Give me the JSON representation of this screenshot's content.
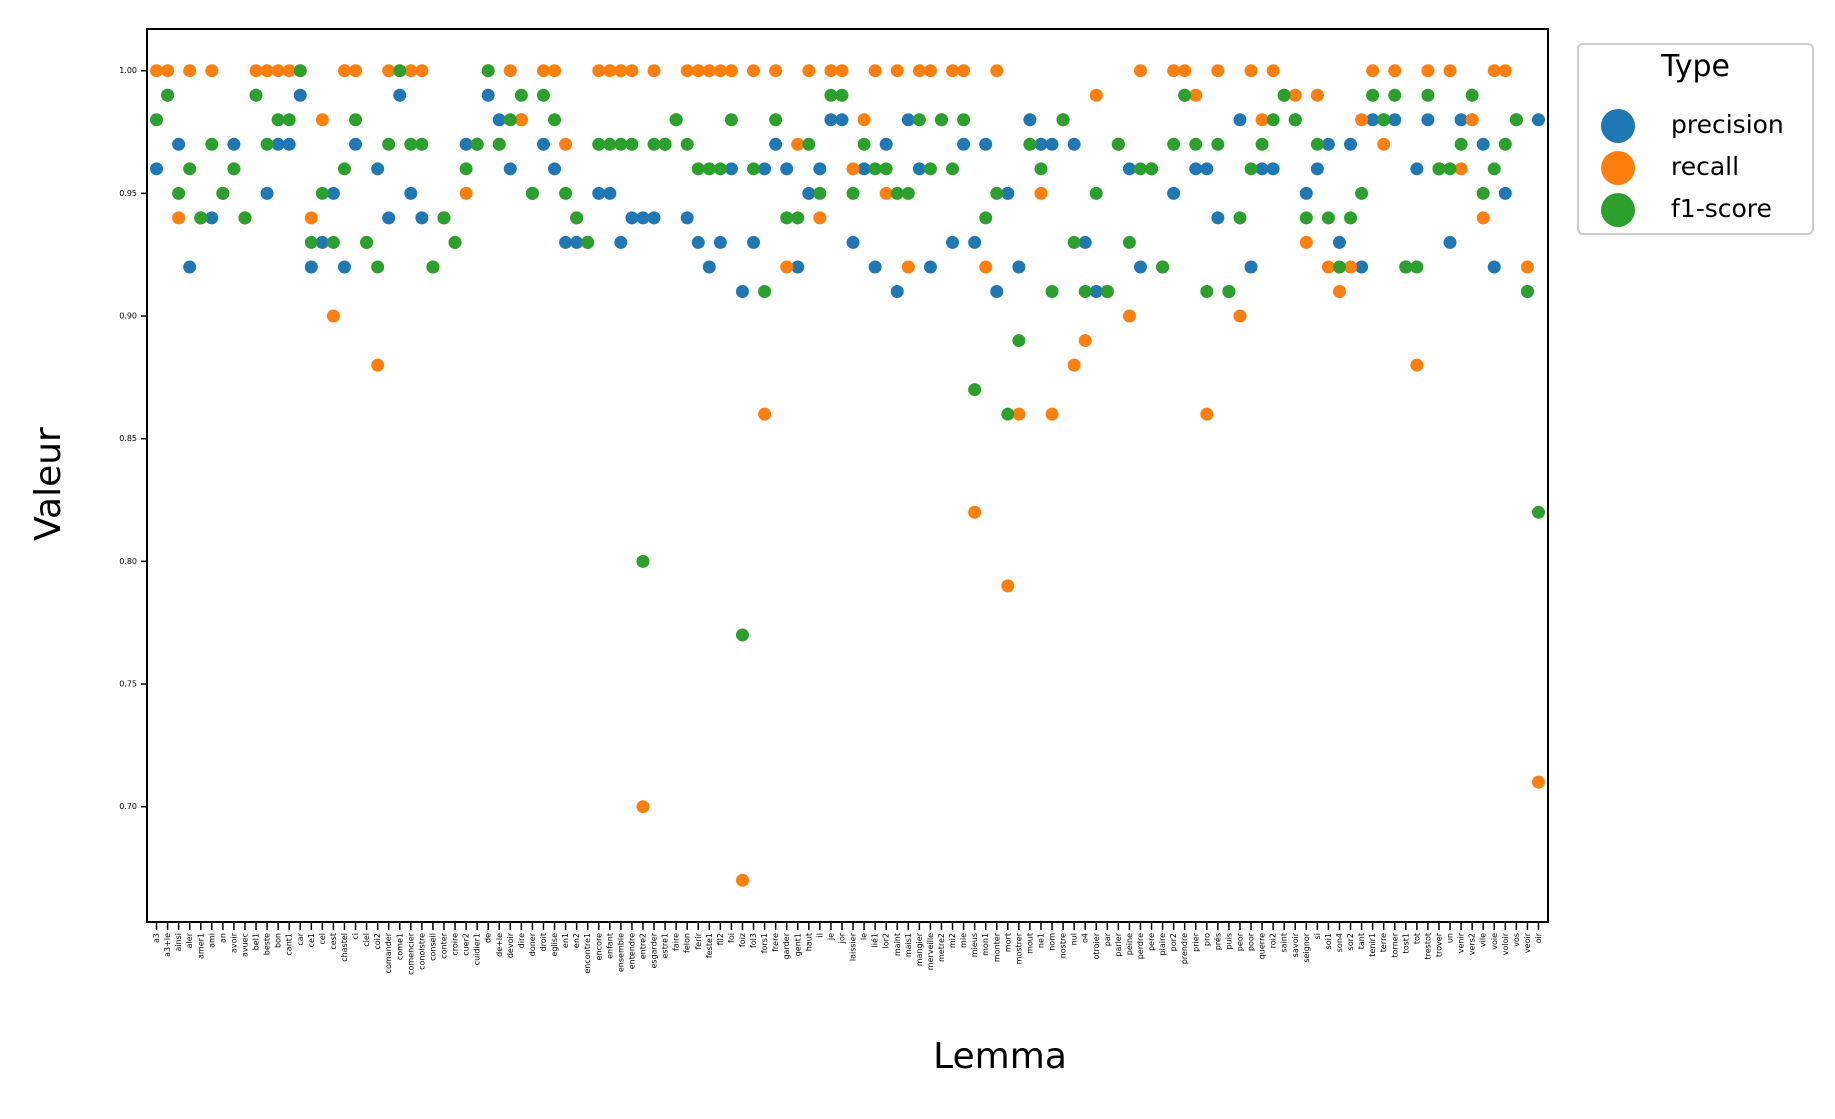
{
  "chart_data": {
    "type": "strip",
    "x_label": "Lemma",
    "y_label": "Valeur",
    "legend_title": "Type",
    "legend": "upper right outside",
    "categories": [
      "a3",
      "a3+le",
      "ainsi",
      "aler",
      "amer1",
      "ami",
      "an",
      "avoir",
      "avuec",
      "bel1",
      "beste",
      "bon",
      "cant1",
      "car",
      "ce1",
      "cel",
      "cest",
      "chastel",
      "ci",
      "ciel",
      "coi2",
      "comander",
      "come1",
      "comencier",
      "conoistre",
      "conseil",
      "conter",
      "croire",
      "cuer2",
      "cuidier1",
      "de",
      "de+le",
      "devoir",
      "dire",
      "doner",
      "droit",
      "eglise",
      "en1",
      "en2",
      "encontre1",
      "encore",
      "enfant",
      "ensemble",
      "entendre",
      "entre2",
      "esgarder",
      "estre1",
      "faire",
      "felon",
      "ferir",
      "feste1",
      "fil2",
      "foi",
      "foiz",
      "fol3",
      "fors1",
      "frere",
      "garder",
      "gent1",
      "haut",
      "il",
      "je",
      "jor",
      "laissier",
      "le",
      "lié1",
      "lor2",
      "maint",
      "mais1",
      "mangier",
      "merveille",
      "metre2",
      "mi2",
      "mie",
      "mieus",
      "mon1",
      "monter",
      "mort",
      "mostrer",
      "mout",
      "ne1",
      "nom",
      "nostre",
      "nul",
      "o4",
      "otroier",
      "par",
      "parler",
      "peine",
      "perdre",
      "pere",
      "plaire",
      "por2",
      "prendre",
      "prier",
      "pro",
      "prés",
      "puis",
      "peor",
      "poor",
      "querre",
      "roi2",
      "saint",
      "savoir",
      "seignor",
      "si",
      "soi1",
      "son4",
      "sor2",
      "tant",
      "tenir1",
      "terre",
      "torner",
      "tost1",
      "tot",
      "trestot",
      "trover",
      "un",
      "venir",
      "vers2",
      "vile",
      "voie",
      "voloir",
      "vos",
      "veoir",
      "oir"
    ],
    "series": [
      {
        "name": "precision",
        "color": "#1f77b4",
        "values": [
          0.96,
          0.99,
          0.97,
          0.92,
          0.94,
          0.94,
          0.95,
          0.97,
          0.94,
          0.99,
          0.95,
          0.97,
          0.97,
          0.99,
          0.92,
          0.93,
          0.95,
          0.92,
          0.97,
          0.93,
          0.96,
          0.94,
          0.99,
          0.95,
          0.94,
          0.92,
          0.94,
          0.93,
          0.97,
          0.97,
          0.99,
          0.98,
          0.96,
          0.98,
          0.95,
          0.97,
          0.96,
          0.93,
          0.93,
          0.93,
          0.95,
          0.95,
          0.93,
          0.94,
          0.94,
          0.94,
          0.97,
          0.98,
          0.94,
          0.93,
          0.92,
          0.93,
          0.96,
          0.91,
          0.93,
          0.96,
          0.97,
          0.96,
          0.92,
          0.95,
          0.96,
          0.98,
          0.98,
          0.93,
          0.96,
          0.92,
          0.97,
          0.91,
          0.98,
          0.96,
          0.92,
          0.98,
          0.93,
          0.97,
          0.93,
          0.97,
          0.91,
          0.95,
          0.92,
          0.98,
          0.97,
          0.97,
          0.98,
          0.97,
          0.93,
          0.91,
          0.91,
          0.97,
          0.96,
          0.92,
          0.96,
          0.92,
          0.95,
          0.99,
          0.96,
          0.96,
          0.94,
          0.91,
          0.98,
          0.92,
          0.96,
          0.96,
          0.99,
          0.98,
          0.95,
          0.96,
          0.97,
          0.93,
          0.97,
          0.92,
          0.98,
          0.98,
          0.98,
          0.92,
          0.96,
          0.98,
          0.96,
          0.93,
          0.98,
          0.98,
          0.97,
          0.92,
          0.95,
          0.98,
          0.91,
          0.98
        ]
      },
      {
        "name": "recall",
        "color": "#ff7f0e",
        "values": [
          1,
          1,
          0.94,
          1,
          0.94,
          1,
          0.95,
          0.96,
          0.94,
          1,
          1,
          1,
          1,
          1,
          0.94,
          0.98,
          0.9,
          1,
          1,
          0.93,
          0.88,
          1,
          1,
          1,
          1,
          0.92,
          0.94,
          0.93,
          0.95,
          0.97,
          1,
          0.97,
          1,
          0.98,
          0.95,
          1,
          1,
          0.97,
          0.94,
          0.93,
          1,
          1,
          1,
          1,
          0.7,
          1,
          0.97,
          0.98,
          1,
          1,
          1,
          1,
          1,
          0.67,
          1,
          0.86,
          1,
          0.92,
          0.97,
          1,
          0.94,
          1,
          1,
          0.96,
          0.98,
          1,
          0.95,
          1,
          0.92,
          1,
          1,
          0.98,
          1,
          1,
          0.82,
          0.92,
          1,
          0.79,
          0.86,
          0.97,
          0.95,
          0.86,
          0.98,
          0.88,
          0.89,
          0.99,
          0.91,
          0.97,
          0.9,
          1,
          0.96,
          0.92,
          1,
          1,
          0.99,
          0.86,
          1,
          0.91,
          0.9,
          1,
          0.98,
          1,
          0.99,
          0.99,
          0.93,
          0.99,
          0.92,
          0.91,
          0.92,
          0.98,
          1,
          0.97,
          1,
          0.92,
          0.88,
          1,
          0.96,
          1,
          0.96,
          0.98,
          0.94,
          1,
          1,
          0.98,
          0.92,
          0.71
        ]
      },
      {
        "name": "f1-score",
        "color": "#2ca02c",
        "values": [
          0.98,
          0.99,
          0.95,
          0.96,
          0.94,
          0.97,
          0.95,
          0.96,
          0.94,
          0.99,
          0.97,
          0.98,
          0.98,
          1,
          0.93,
          0.95,
          0.93,
          0.96,
          0.98,
          0.93,
          0.92,
          0.97,
          1,
          0.97,
          0.97,
          0.92,
          0.94,
          0.93,
          0.96,
          0.97,
          1,
          0.97,
          0.98,
          0.99,
          0.95,
          0.99,
          0.98,
          0.95,
          0.94,
          0.93,
          0.97,
          0.97,
          0.97,
          0.97,
          0.8,
          0.97,
          0.97,
          0.98,
          0.97,
          0.96,
          0.96,
          0.96,
          0.98,
          0.77,
          0.96,
          0.91,
          0.98,
          0.94,
          0.94,
          0.97,
          0.95,
          0.99,
          0.99,
          0.95,
          0.97,
          0.96,
          0.96,
          0.95,
          0.95,
          0.98,
          0.96,
          0.98,
          0.96,
          0.98,
          0.87,
          0.94,
          0.95,
          0.86,
          0.89,
          0.97,
          0.96,
          0.91,
          0.98,
          0.93,
          0.91,
          0.95,
          0.91,
          0.97,
          0.93,
          0.96,
          0.96,
          0.92,
          0.97,
          0.99,
          0.97,
          0.91,
          0.97,
          0.91,
          0.94,
          0.96,
          0.97,
          0.98,
          0.99,
          0.98,
          0.94,
          0.97,
          0.94,
          0.92,
          0.94,
          0.95,
          0.99,
          0.98,
          0.99,
          0.92,
          0.92,
          0.99,
          0.96,
          0.96,
          0.97,
          0.99,
          0.95,
          0.96,
          0.97,
          0.98,
          0.91,
          0.82
        ]
      }
    ],
    "ylim": [
      0.653,
      1.017
    ],
    "yticks": [
      {
        "value": 0.7,
        "label": "0.70"
      },
      {
        "value": 0.75,
        "label": "0.75"
      },
      {
        "value": 0.8,
        "label": "0.80"
      },
      {
        "value": 0.85,
        "label": "0.85"
      },
      {
        "value": 0.9,
        "label": "0.90"
      },
      {
        "value": 0.95,
        "label": "0.95"
      },
      {
        "value": 1,
        "label": "1.00"
      }
    ]
  }
}
